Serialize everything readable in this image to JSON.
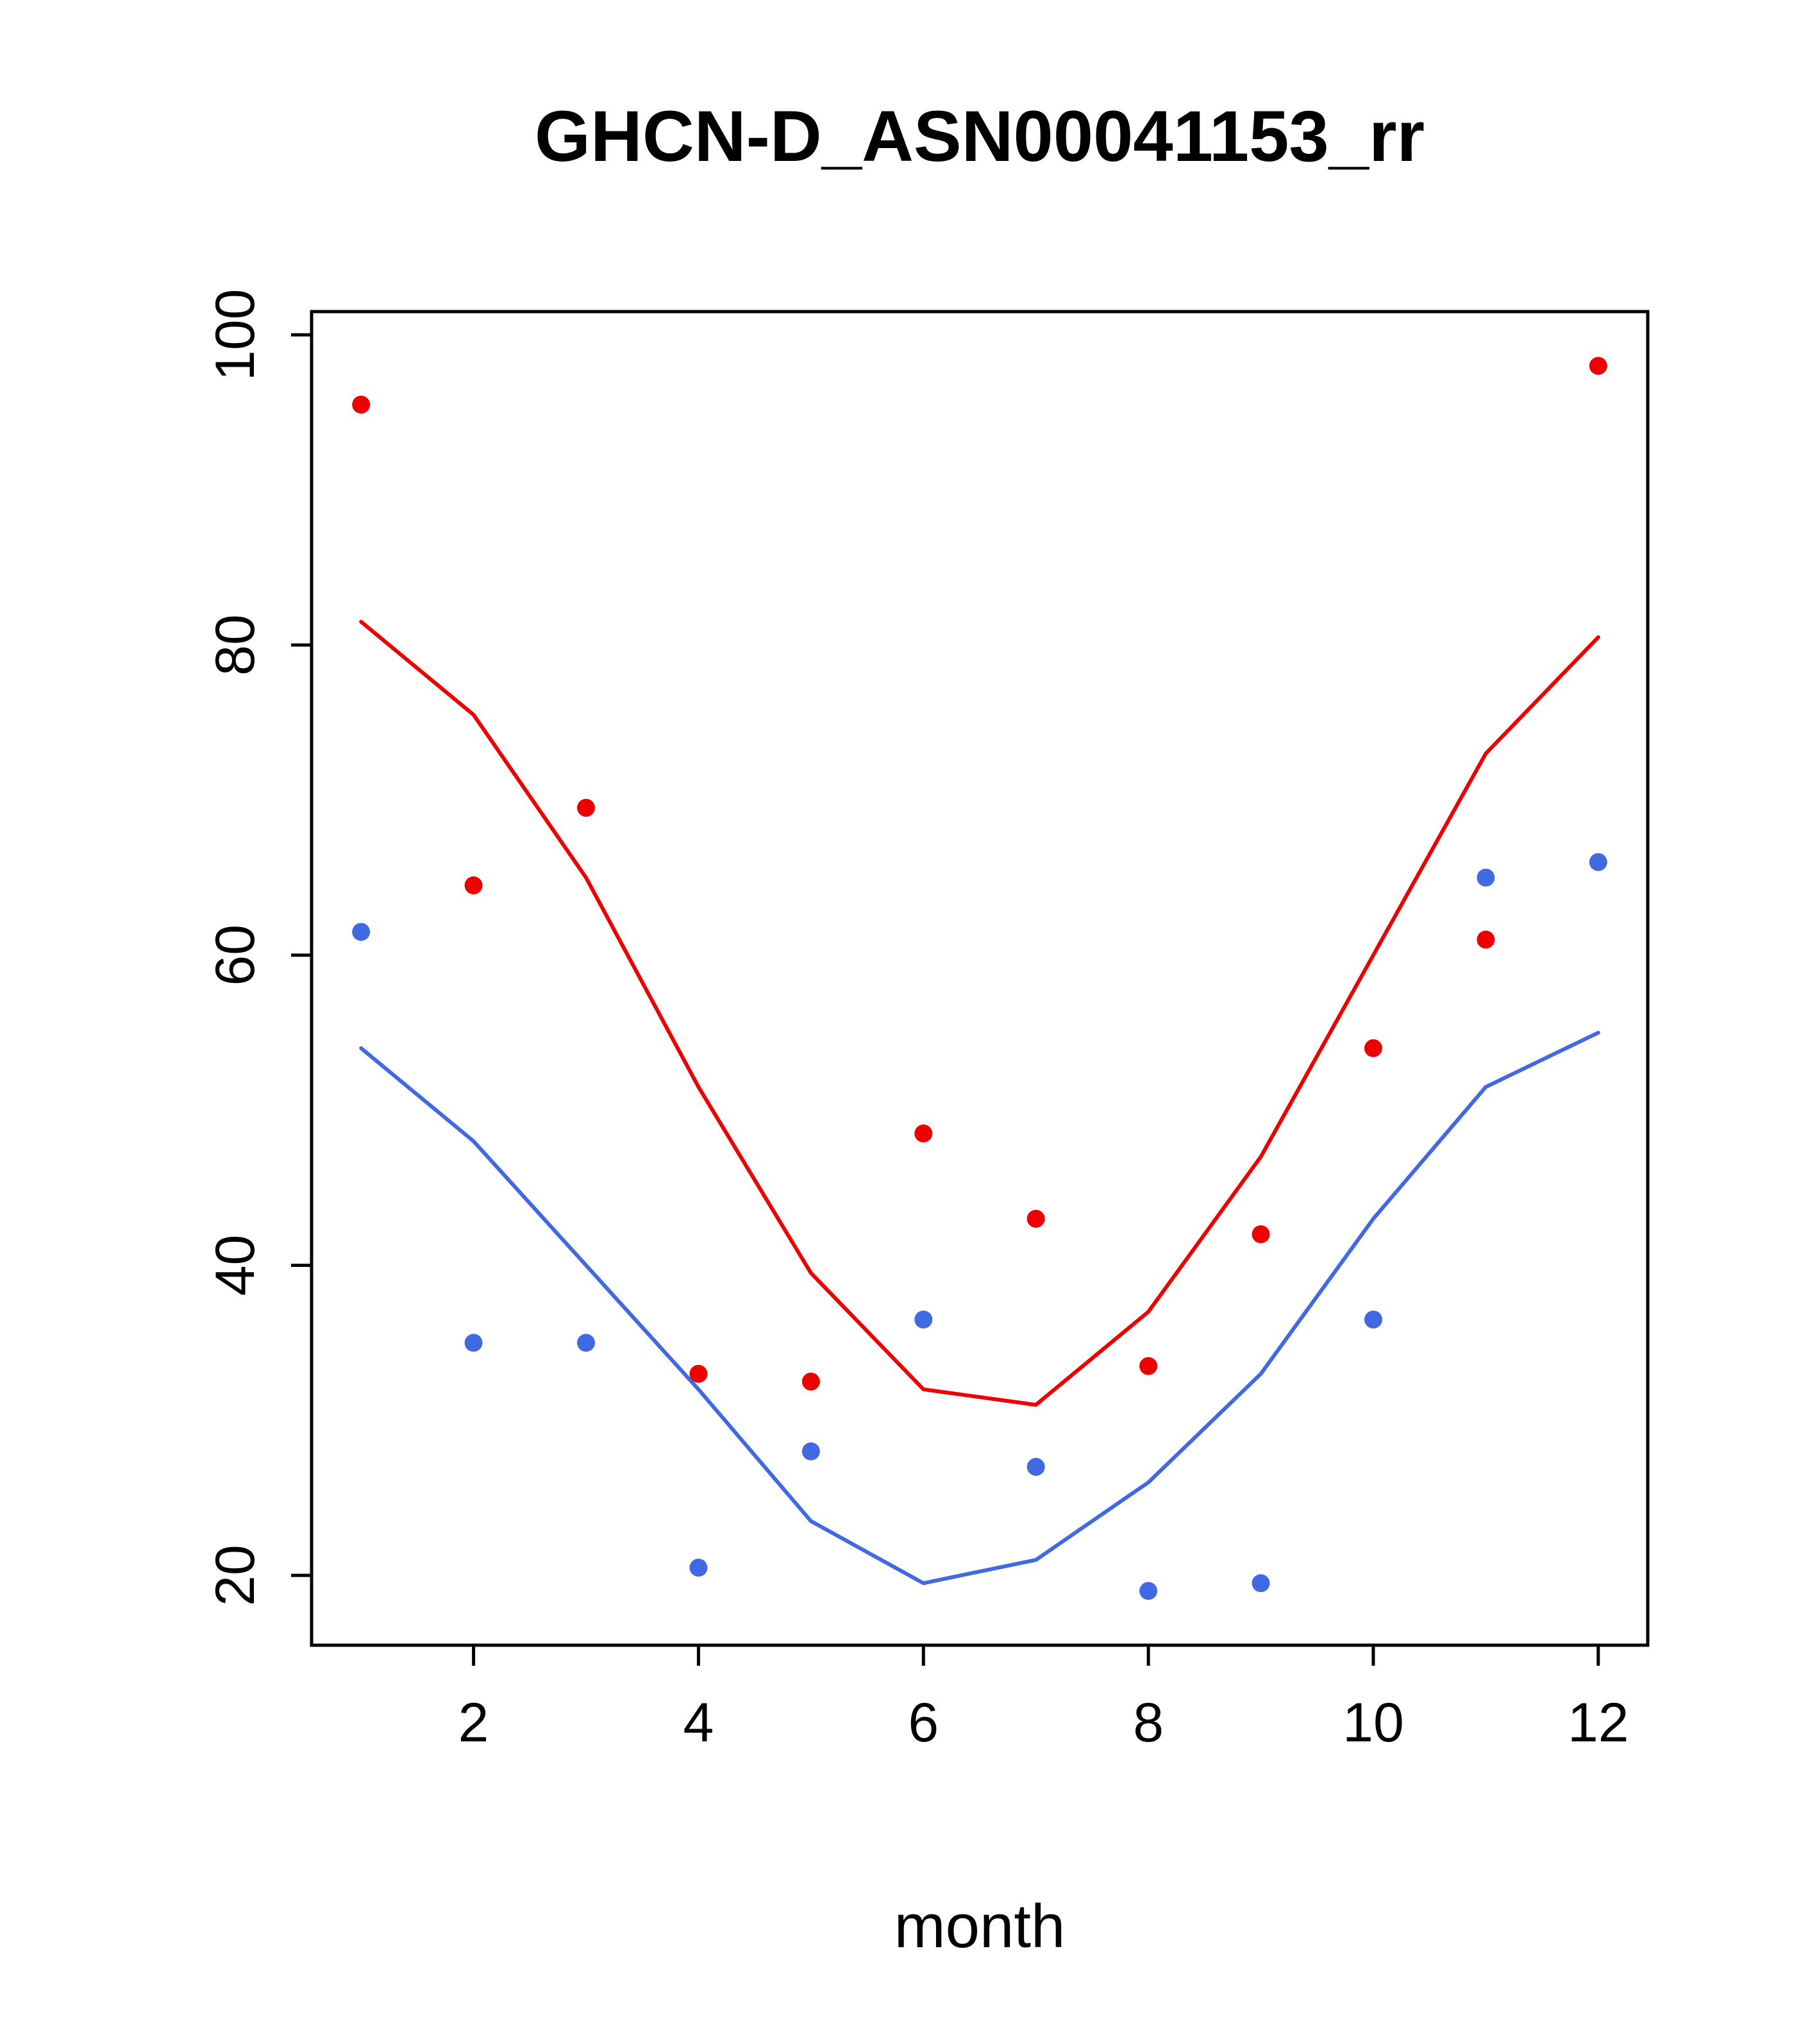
{
  "title": "GHCN-D_ASN00041153_rr",
  "xlabel": "month",
  "ylabel": "",
  "chart_data": {
    "type": "line",
    "title": "GHCN-D_ASN00041153_rr",
    "xlabel": "month",
    "ylabel": "",
    "x": [
      1,
      2,
      3,
      4,
      5,
      6,
      7,
      8,
      9,
      10,
      11,
      12
    ],
    "x_ticks": [
      2,
      4,
      6,
      8,
      10,
      12
    ],
    "y_ticks": [
      20,
      40,
      60,
      80,
      100
    ],
    "xlim": [
      0.56,
      12.44
    ],
    "ylim": [
      15.5,
      101.5
    ],
    "grid": "off",
    "legend": "none",
    "colors": {
      "red": "#ee0000",
      "blue": "#4169e1",
      "axis": "#000000",
      "background": "#ffffff"
    },
    "series": [
      {
        "name": "red-line",
        "kind": "line",
        "color": "#ee0000",
        "values": [
          81.5,
          75.5,
          65,
          51.5,
          39.5,
          32,
          31,
          37,
          47,
          60,
          73,
          80.5
        ]
      },
      {
        "name": "blue-line",
        "kind": "line",
        "color": "#4169e1",
        "values": [
          54,
          48,
          40,
          32,
          23.5,
          19.5,
          21,
          26,
          33,
          43,
          51.5,
          55
        ]
      },
      {
        "name": "red-points",
        "kind": "scatter",
        "color": "#ee0000",
        "values": [
          95.5,
          64.5,
          69.5,
          33,
          32.5,
          48.5,
          43,
          33.5,
          42,
          54,
          61,
          98
        ]
      },
      {
        "name": "blue-points",
        "kind": "scatter",
        "color": "#4169e1",
        "values": [
          61.5,
          35,
          35,
          20.5,
          28,
          36.5,
          27,
          19,
          19.5,
          36.5,
          65,
          66
        ]
      }
    ]
  }
}
